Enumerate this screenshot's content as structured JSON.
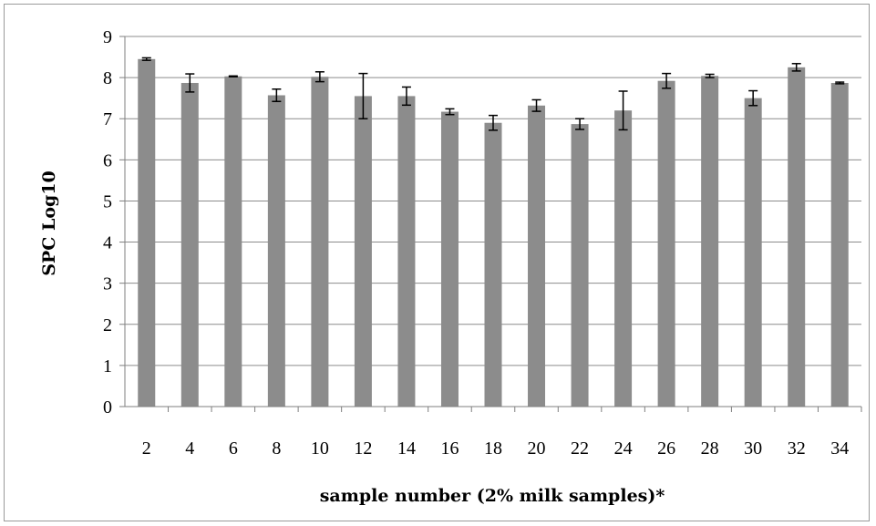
{
  "chart_data": {
    "type": "bar",
    "title": "",
    "xlabel": "sample number (2% milk samples)*",
    "ylabel": "SPC Log10",
    "ylim": [
      0,
      9
    ],
    "yticks": [
      "0",
      "1",
      "2",
      "3",
      "4",
      "5",
      "6",
      "7",
      "8",
      "9"
    ],
    "grid": true,
    "colors": {
      "bar": "#8c8c8c",
      "grid": "#8c8c8c",
      "frame": "#9a9a9a"
    },
    "categories": [
      "2",
      "4",
      "6",
      "8",
      "10",
      "12",
      "14",
      "16",
      "18",
      "20",
      "22",
      "24",
      "26",
      "28",
      "30",
      "32",
      "34"
    ],
    "values": [
      8.45,
      7.87,
      8.03,
      7.57,
      8.02,
      7.55,
      7.55,
      7.17,
      6.9,
      7.32,
      6.87,
      7.2,
      7.92,
      8.04,
      7.5,
      8.25,
      7.87
    ],
    "errors": [
      0.03,
      0.22,
      0.01,
      0.15,
      0.12,
      0.55,
      0.22,
      0.07,
      0.18,
      0.14,
      0.13,
      0.47,
      0.18,
      0.04,
      0.18,
      0.09,
      0.02
    ]
  }
}
